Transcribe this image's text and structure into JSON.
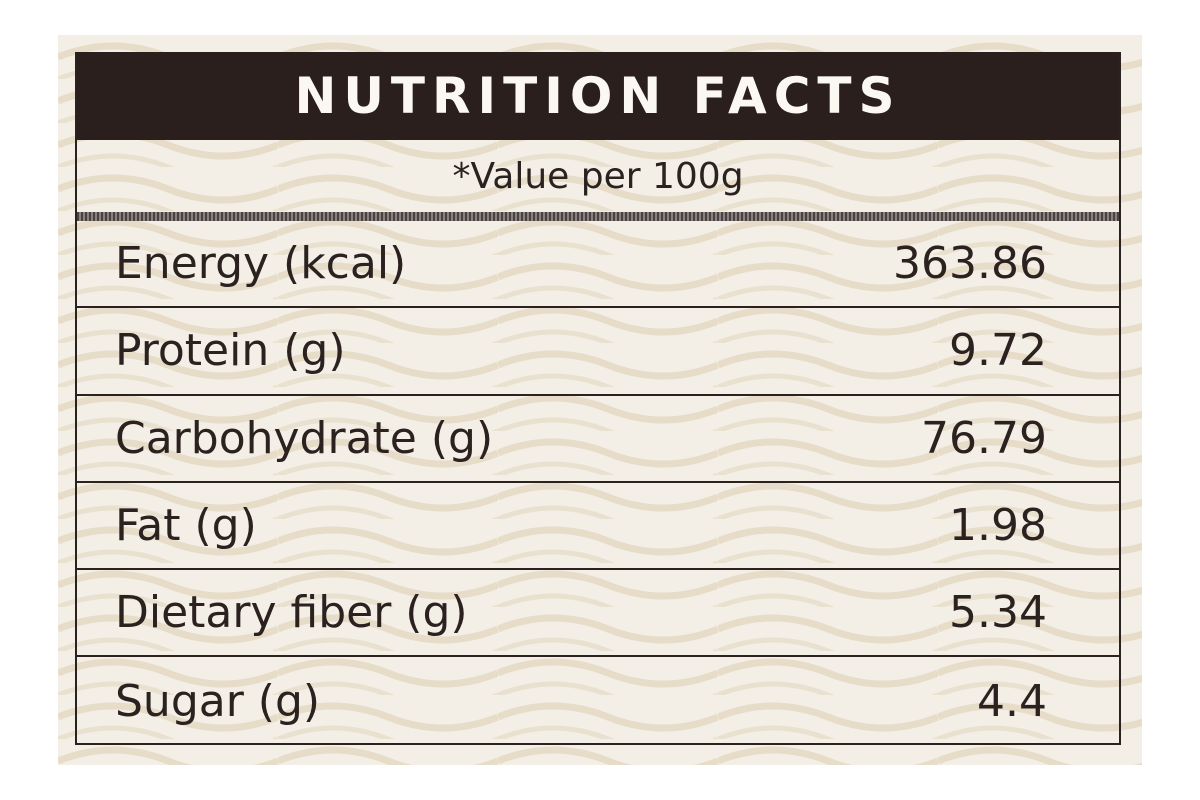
{
  "header": {
    "title": "NUTRITION FACTS",
    "subtitle": "*Value per 100g"
  },
  "table": {
    "rows": [
      [
        "Energy (kcal)",
        "363.86"
      ],
      [
        "Protein (g)",
        "9.72"
      ],
      [
        "Carbohydrate (g)",
        "76.79"
      ],
      [
        "Fat (g)",
        "1.98"
      ],
      [
        "Dietary fiber (g)",
        "5.34"
      ],
      [
        "Sugar (g)",
        "4.4"
      ]
    ]
  }
}
